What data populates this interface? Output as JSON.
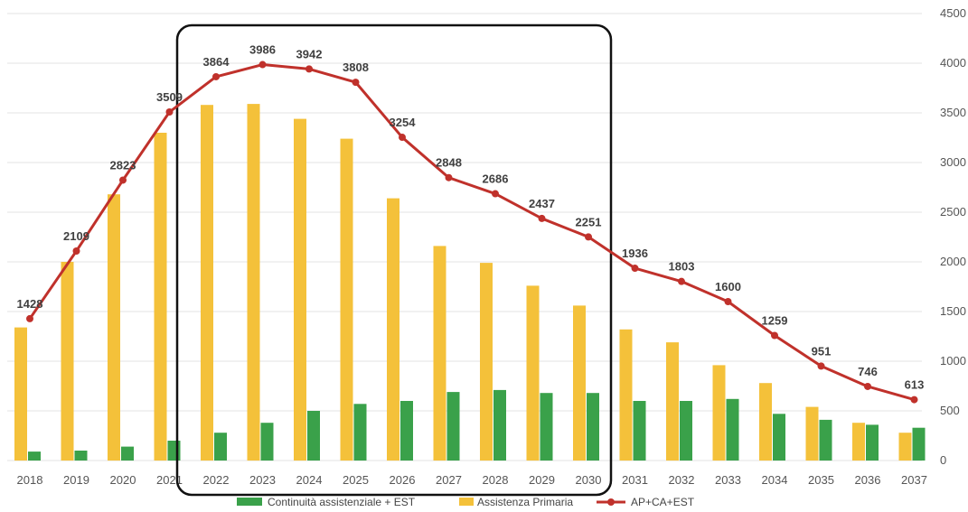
{
  "chart_data": {
    "type": "bar",
    "categories": [
      "2018",
      "2019",
      "2020",
      "2021",
      "2022",
      "2023",
      "2024",
      "2025",
      "2026",
      "2027",
      "2028",
      "2029",
      "2030",
      "2031",
      "2032",
      "2033",
      "2034",
      "2035",
      "2036",
      "2037"
    ],
    "series": [
      {
        "name": "Continuità assistenziale + EST",
        "type": "bar",
        "color": "#3aa14a",
        "values": [
          90,
          100,
          140,
          200,
          280,
          380,
          500,
          570,
          600,
          690,
          710,
          680,
          680,
          600,
          600,
          620,
          470,
          410,
          360,
          330
        ]
      },
      {
        "name": "Assistenza Primaria",
        "type": "bar",
        "color": "#f4c13a",
        "values": [
          1340,
          2000,
          2680,
          3300,
          3580,
          3590,
          3440,
          3240,
          2640,
          2160,
          1990,
          1760,
          1560,
          1320,
          1190,
          960,
          780,
          540,
          380,
          280
        ]
      },
      {
        "name": "AP+CA+EST",
        "type": "line",
        "color": "#c0312b",
        "values": [
          1428,
          2109,
          2823,
          3509,
          3864,
          3986,
          3942,
          3808,
          3254,
          2848,
          2686,
          2437,
          2251,
          1936,
          1803,
          1600,
          1259,
          951,
          746,
          613
        ]
      }
    ],
    "data_labels": [
      "1428",
      "2109",
      "2823",
      "3509",
      "3864",
      "3986",
      "3942",
      "3808",
      "3254",
      "2848",
      "2686",
      "2437",
      "2251",
      "1936",
      "1803",
      "1600",
      "1259",
      "951",
      "746",
      "613"
    ],
    "y_ticks": [
      "0",
      "500",
      "1000",
      "1500",
      "2000",
      "2500",
      "3000",
      "3500",
      "4000",
      "4500"
    ],
    "ylim": [
      0,
      4500
    ],
    "y_axis_side": "right",
    "grid": true,
    "legend_position": "bottom",
    "highlight_range": [
      "2022",
      "2030"
    ],
    "title": "",
    "xlabel": "",
    "ylabel": ""
  }
}
